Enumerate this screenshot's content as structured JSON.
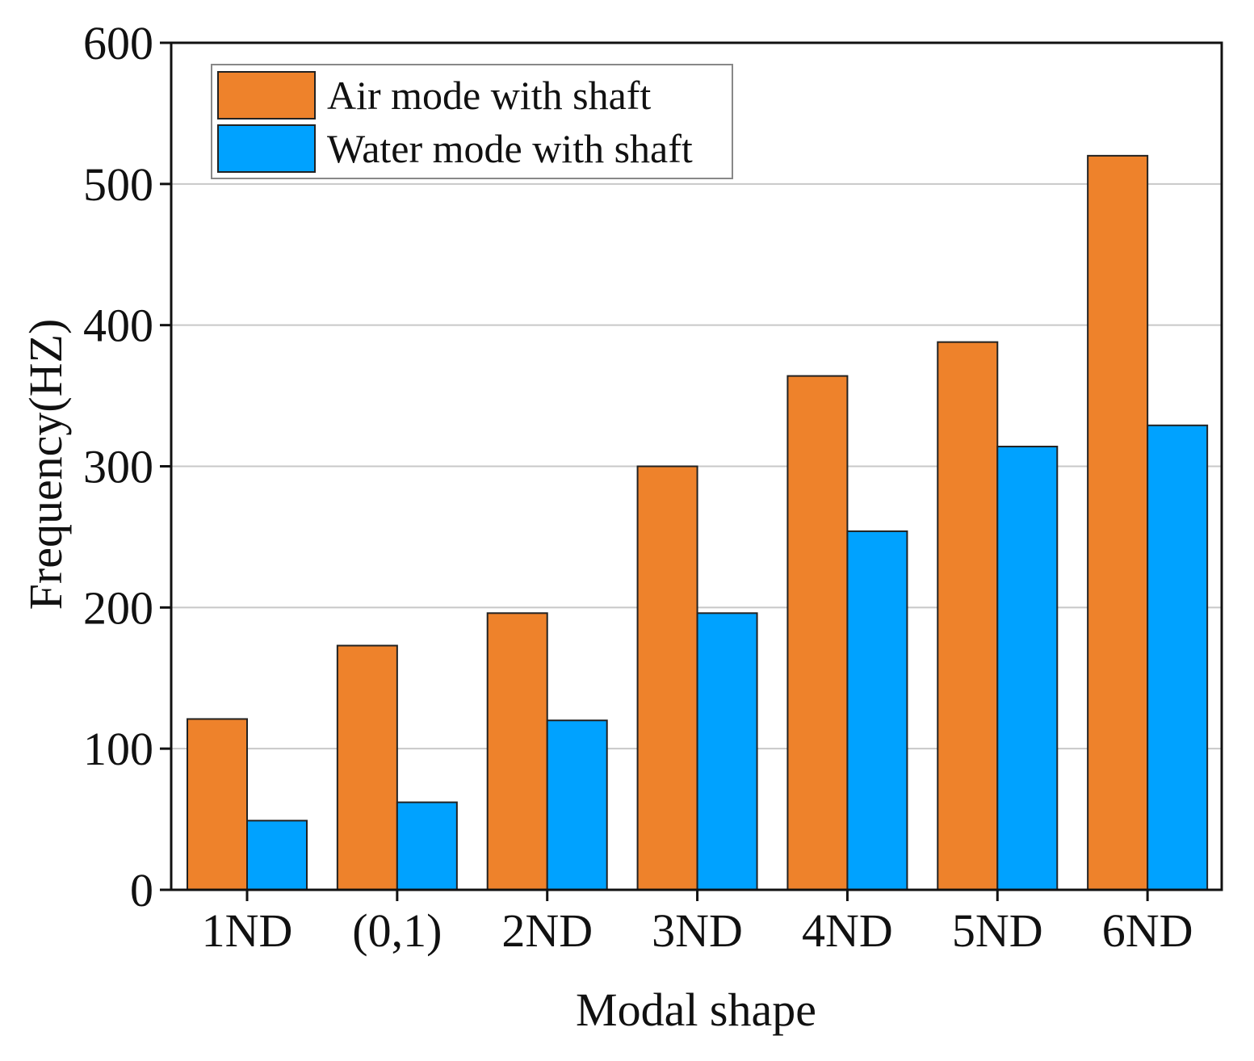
{
  "chart_data": {
    "type": "bar",
    "title": "",
    "xlabel": "Modal shape",
    "ylabel": "Frequency(HZ)",
    "categories": [
      "1ND",
      "(0,1)",
      "2ND",
      "3ND",
      "4ND",
      "5ND",
      "6ND"
    ],
    "series": [
      {
        "name": "Air mode with shaft",
        "color": "#EE822B",
        "values": [
          121,
          173,
          196,
          300,
          364,
          388,
          520
        ]
      },
      {
        "name": "Water mode with shaft",
        "color": "#00A2FF",
        "values": [
          49,
          62,
          120,
          196,
          254,
          314,
          329
        ]
      }
    ],
    "ylim": [
      0,
      600
    ],
    "yticks": [
      "0",
      "100",
      "200",
      "300",
      "400",
      "500",
      "600"
    ],
    "grid": true,
    "legend": "top-left"
  }
}
